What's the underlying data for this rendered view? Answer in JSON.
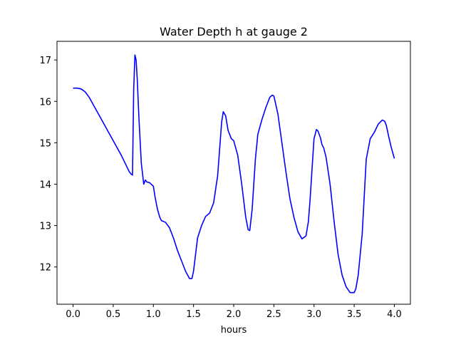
{
  "chart_data": {
    "type": "line",
    "title": "Water Depth h at gauge 2",
    "xlabel": "hours",
    "ylabel": "",
    "xlim": [
      -0.2,
      4.2
    ],
    "ylim": [
      11.1,
      17.45
    ],
    "xticks": [
      0.0,
      0.5,
      1.0,
      1.5,
      2.0,
      2.5,
      3.0,
      3.5,
      4.0
    ],
    "xtick_labels": [
      "0.0",
      "0.5",
      "1.0",
      "1.5",
      "2.0",
      "2.5",
      "3.0",
      "3.5",
      "4.0"
    ],
    "yticks": [
      12,
      13,
      14,
      15,
      16,
      17
    ],
    "ytick_labels": [
      "12",
      "13",
      "14",
      "15",
      "16",
      "17"
    ],
    "grid": false,
    "series": [
      {
        "color": "#0000ff",
        "x": [
          0.0,
          0.05,
          0.1,
          0.15,
          0.2,
          0.3,
          0.4,
          0.5,
          0.6,
          0.65,
          0.7,
          0.72,
          0.74,
          0.755,
          0.77,
          0.785,
          0.8,
          0.82,
          0.85,
          0.88,
          0.9,
          0.92,
          0.95,
          1.0,
          1.02,
          1.05,
          1.08,
          1.1,
          1.15,
          1.2,
          1.25,
          1.3,
          1.35,
          1.4,
          1.45,
          1.48,
          1.5,
          1.55,
          1.6,
          1.65,
          1.7,
          1.75,
          1.8,
          1.85,
          1.87,
          1.9,
          1.93,
          1.97,
          2.0,
          2.05,
          2.1,
          2.15,
          2.18,
          2.2,
          2.23,
          2.27,
          2.3,
          2.35,
          2.4,
          2.45,
          2.48,
          2.5,
          2.55,
          2.6,
          2.65,
          2.7,
          2.75,
          2.8,
          2.85,
          2.9,
          2.93,
          2.95,
          3.0,
          3.03,
          3.05,
          3.08,
          3.1,
          3.12,
          3.15,
          3.2,
          3.25,
          3.3,
          3.35,
          3.4,
          3.45,
          3.5,
          3.52,
          3.55,
          3.6,
          3.65,
          3.7,
          3.75,
          3.8,
          3.85,
          3.88,
          3.9,
          3.93,
          3.96,
          4.0
        ],
        "y": [
          16.32,
          16.32,
          16.3,
          16.23,
          16.1,
          15.75,
          15.4,
          15.05,
          14.7,
          14.5,
          14.3,
          14.25,
          14.22,
          16.3,
          17.12,
          17.0,
          16.5,
          15.6,
          14.5,
          14.0,
          14.1,
          14.05,
          14.04,
          13.95,
          13.7,
          13.4,
          13.2,
          13.12,
          13.08,
          12.95,
          12.7,
          12.4,
          12.15,
          11.9,
          11.72,
          11.72,
          11.9,
          12.7,
          13.0,
          13.22,
          13.3,
          13.55,
          14.2,
          15.5,
          15.75,
          15.65,
          15.3,
          15.1,
          15.05,
          14.7,
          14.0,
          13.2,
          12.9,
          12.88,
          13.4,
          14.6,
          15.2,
          15.55,
          15.85,
          16.1,
          16.15,
          16.13,
          15.7,
          15.0,
          14.3,
          13.65,
          13.2,
          12.85,
          12.68,
          12.75,
          13.1,
          13.6,
          15.1,
          15.32,
          15.28,
          15.12,
          14.95,
          14.88,
          14.65,
          14.0,
          13.1,
          12.3,
          11.8,
          11.52,
          11.38,
          11.38,
          11.47,
          11.8,
          12.8,
          14.6,
          15.1,
          15.25,
          15.45,
          15.55,
          15.52,
          15.42,
          15.15,
          14.9,
          14.62
        ]
      }
    ]
  }
}
